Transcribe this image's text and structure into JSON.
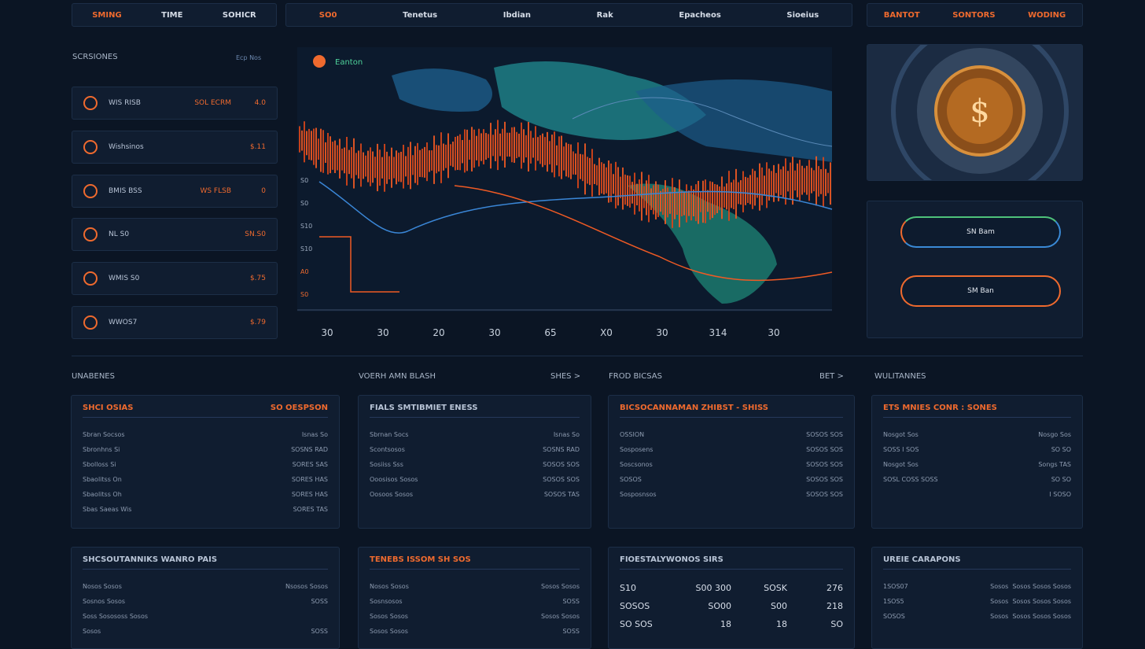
{
  "nav_left": [
    "SMING",
    "TIME",
    "SOHICR"
  ],
  "nav_center": [
    "SO0",
    "Tenetus",
    "Ibdian",
    "Rak",
    "Epacheos",
    "Sioeius"
  ],
  "nav_right": [
    "BANTOT",
    "SONTORS",
    "WODING"
  ],
  "sidebar": {
    "title": "SCRSIONES",
    "link": "Ecp Nos",
    "items": [
      {
        "label": "WIS RISB",
        "value": "SOL ECRM",
        "num": "4.0"
      },
      {
        "label": "Wishsinos",
        "value": "",
        "num": "$.11"
      },
      {
        "label": "BMIS BSS",
        "value": "WS FLSB",
        "num": "0"
      },
      {
        "label": "NL S0",
        "value": "",
        "num": "SN.S0"
      },
      {
        "label": "WMIS S0",
        "value": "",
        "num": "$.75"
      },
      {
        "label": "WWOS7",
        "value": "",
        "num": "$.79"
      }
    ]
  },
  "chart": {
    "title": "Eanton",
    "y_labels": [
      "S0",
      "S0",
      "S10",
      "S10",
      "A0",
      "S0"
    ],
    "x_labels": [
      "30",
      "30",
      "20",
      "30",
      "65",
      "X0",
      "30",
      "314",
      "30"
    ]
  },
  "wallet": {
    "buttons": [
      "SN Bam",
      "SM Ban"
    ]
  },
  "sections": [
    {
      "title": "UNABENES",
      "link": ""
    },
    {
      "title": "VOERH AMN BLASH",
      "link": "SHES >"
    },
    {
      "title": "FROD BICSAS",
      "link": "BET >"
    },
    {
      "title": "WULITANNES",
      "link": ""
    }
  ],
  "cards": [
    {
      "title": "SHCI OSIAS",
      "extra": "SO OESPSON",
      "rows": [
        [
          "Sbran Socsos",
          "Isnas So"
        ],
        [
          "Sbronhns Si",
          "SOSNS RAD"
        ],
        [
          "Sbolloss Si",
          "SORES SAS"
        ],
        [
          "Sbaolitss On",
          "SORES HAS"
        ],
        [
          "Sbaolitss Oh",
          "SORES HAS"
        ],
        [
          "Sbas Saeas Wis",
          "SORES TAS"
        ]
      ]
    },
    {
      "title": "FIALS SMTIBMIET ENESS",
      "extra": "",
      "rows": [
        [
          "Sbrnan Socs",
          "Isnas So"
        ],
        [
          "Scontsosos",
          "SOSNS RAD"
        ],
        [
          "Sosiiss Sss",
          "SOSOS SOS"
        ],
        [
          "Ooosisos Sosos",
          "SOSOS SOS"
        ],
        [
          "Oosoos Sosos",
          "SOSOS TAS"
        ]
      ]
    },
    {
      "title": "BICSOCANNAMAN ZHIBST - SHISS",
      "extra": "",
      "rows": [
        [
          "OSSION",
          "SOSOS SOS"
        ],
        [
          "Sosposens",
          "SOSOS SOS"
        ],
        [
          "Soscsonos",
          "SOSOS SOS"
        ],
        [
          "SOSOS",
          "SOSOS SOS"
        ],
        [
          "Sosposnsos",
          "SOSOS SOS"
        ]
      ]
    },
    {
      "title": "ETS MNIES CONR : SONES",
      "extra": "",
      "rows": [
        [
          "Nosgot Sos",
          "Nosgo Sos"
        ],
        [
          "SOSS I SOS",
          "SO SO"
        ],
        [
          "Nosgot Sos",
          "Songs TAS"
        ],
        [
          "SOSL COSS SOSS",
          "SO SO"
        ],
        [
          "",
          "I SOSO"
        ]
      ]
    },
    {
      "title": "SHCSOUTANNIKS WANRO PAIS",
      "extra": "",
      "rows": [
        [
          "Nosos Sosos",
          "Nsosos Sosos"
        ],
        [
          "Sosnos Sosos",
          "SOSS"
        ],
        [
          "Soss Sosososs Sosos",
          ""
        ],
        [
          "Sosos",
          "SOSS"
        ]
      ]
    },
    {
      "title": "TENEBS ISSOM SH SOS",
      "extra": "",
      "rows": [
        [
          "Nosos Sosos",
          "Sosos Sosos"
        ],
        [
          "Sosnsosos",
          "SOSS"
        ],
        [
          "Sosos Sosos",
          "Sosos Sosos"
        ],
        [
          "Sosos Sosos",
          "SOSS"
        ]
      ]
    },
    {
      "title": "FIOESTALYWONOS SIRS",
      "extra": "",
      "rows": [
        [
          "S10",
          "S00 300",
          "SOSK",
          "276"
        ],
        [
          "SOSOS",
          "SO00",
          "S00",
          "218"
        ],
        [
          "SO SOS",
          "18",
          "18",
          "SO"
        ]
      ]
    },
    {
      "title": "UREIE CARAPONS",
      "extra": "",
      "rows": [
        [
          "1SOS07",
          "Sosos",
          "Sosos Sosos Sosos"
        ],
        [
          "1SOS5",
          "Sosos",
          "Sosos Sosos Sosos"
        ],
        [
          "SOSOS",
          "Sosos",
          "Sosos Sosos Sosos"
        ]
      ]
    }
  ]
}
